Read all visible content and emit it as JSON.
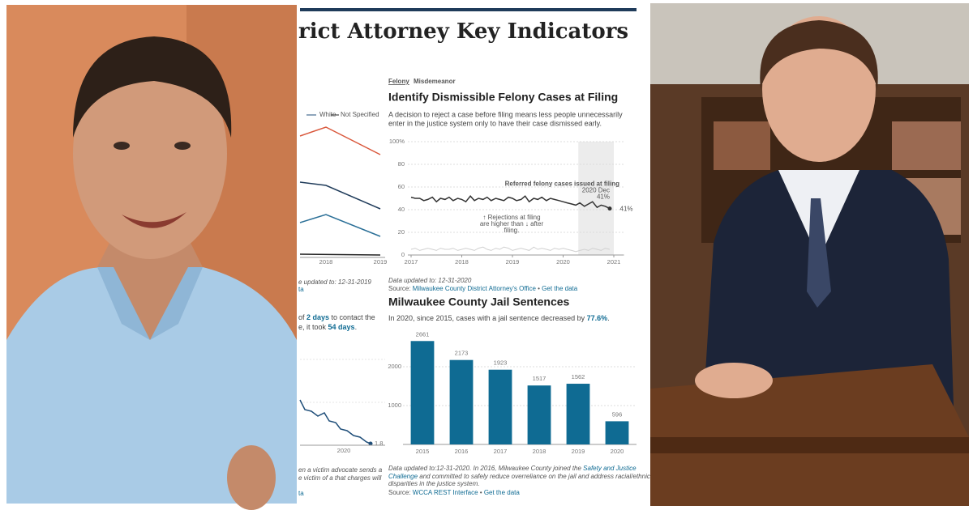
{
  "page": {
    "title": "rict Attorney Key Indicators",
    "left": {
      "legend": [
        "White",
        "Not Specified"
      ],
      "xticks_top": [
        "2018",
        "2019"
      ],
      "updated": "e updated to: 12-31-2019",
      "link_top": "ta",
      "text_line1": [
        "of ",
        "2 days",
        " to contact the"
      ],
      "text_line2": [
        "e, it took ",
        "54 days",
        "."
      ],
      "xtick_bottom": "2020",
      "end_label": "1.8",
      "note_line1": "en a victim advocate sends a",
      "note_line2": "e victim of a that charges will",
      "link_bottom": "ta"
    },
    "felony": {
      "tabs": [
        "Felony",
        "Misdemeanor"
      ],
      "title": "Identify Dismissible Felony Cases at Filing",
      "subtitle": [
        "A decision to reject a case before filing means less people unnecessarily",
        "enter in the justice system only to have their case dismissed early."
      ],
      "updated": "Data updated to: 12-31-2020",
      "source": [
        "Source: ",
        "Milwaukee County District Attorney's Office",
        " • ",
        "Get the data"
      ]
    },
    "jail": {
      "title": "Milwaukee County Jail Sentences",
      "subtitle": [
        "In 2020, since 2015, cases with a jail sentence decreased by ",
        "77.6%",
        "."
      ],
      "note_line1": [
        "Data updated to:12-31-2020. ",
        "In 2016, Milwaukee County joined the ",
        "Safety and Justice"
      ],
      "note_line2": [
        "Challenge",
        " and committed to safely reduce overreliance on the jail and address racial/ethnic"
      ],
      "note_line3": "disparities in the justice system.",
      "source": [
        "Source: ",
        "WCCA REST Interface",
        " • ",
        "Get the data"
      ]
    }
  },
  "chart_data": [
    {
      "type": "line",
      "x": [
        2017,
        2017.08,
        2017.17,
        2017.25,
        2017.33,
        2017.42,
        2017.5,
        2017.58,
        2017.67,
        2017.75,
        2017.83,
        2017.92,
        2018,
        2018.08,
        2018.17,
        2018.25,
        2018.33,
        2018.42,
        2018.5,
        2018.58,
        2018.67,
        2018.75,
        2018.83,
        2018.92,
        2019,
        2019.08,
        2019.17,
        2019.25,
        2019.33,
        2019.42,
        2019.5,
        2019.58,
        2019.67,
        2019.75,
        2019.83,
        2019.92,
        2020,
        2020.08,
        2020.17,
        2020.25,
        2020.33,
        2020.42,
        2020.5,
        2020.58,
        2020.67,
        2020.75,
        2020.83,
        2020.92
      ],
      "series": [
        {
          "name": "Referred felony cases issued at filing",
          "color": "#333333",
          "values": [
            51,
            50,
            50,
            48,
            49,
            51,
            47,
            50,
            49,
            51,
            48,
            50,
            49,
            47,
            52,
            48,
            50,
            49,
            51,
            48,
            50,
            49,
            48,
            51,
            50,
            48,
            49,
            52,
            47,
            50,
            49,
            51,
            48,
            50,
            49,
            48,
            47,
            46,
            45,
            44,
            46,
            43,
            45,
            47,
            42,
            44,
            43,
            41
          ]
        },
        {
          "color": "#d0d0d0",
          "values": [
            5,
            6,
            4,
            5,
            6,
            5,
            4,
            6,
            5,
            5,
            6,
            4,
            5,
            6,
            5,
            4,
            6,
            7,
            5,
            4,
            6,
            5,
            7,
            6,
            4,
            5,
            6,
            5,
            4,
            7,
            5,
            6,
            5,
            4,
            6,
            5,
            6,
            5,
            4,
            3,
            4,
            5,
            4,
            6,
            5,
            4,
            6,
            5
          ]
        }
      ],
      "annotations": [
        "2020 Dec",
        "41%",
        "41%"
      ],
      "note": [
        "↑ Rejections at filing",
        "are higher than ↓ after",
        "filing."
      ],
      "shaded_range": [
        2020.3,
        2021
      ],
      "xlim": [
        2017,
        2021.2
      ],
      "xticks": [
        2017,
        2018,
        2019,
        2020,
        2021
      ],
      "ylim": [
        0,
        100
      ],
      "yticks": [
        0,
        20,
        40,
        60,
        80,
        {
          "value": 100,
          "label": "100%"
        }
      ],
      "grid": true
    },
    {
      "type": "bar",
      "categories": [
        "2015",
        "2016",
        "2017",
        "2018",
        "2019",
        "2020"
      ],
      "values": [
        2661,
        2173,
        1923,
        1517,
        1562,
        596
      ],
      "color": "#0f6b93",
      "ylim": [
        0,
        2700
      ],
      "yticks": [
        1000,
        2000
      ],
      "grid": true
    }
  ]
}
